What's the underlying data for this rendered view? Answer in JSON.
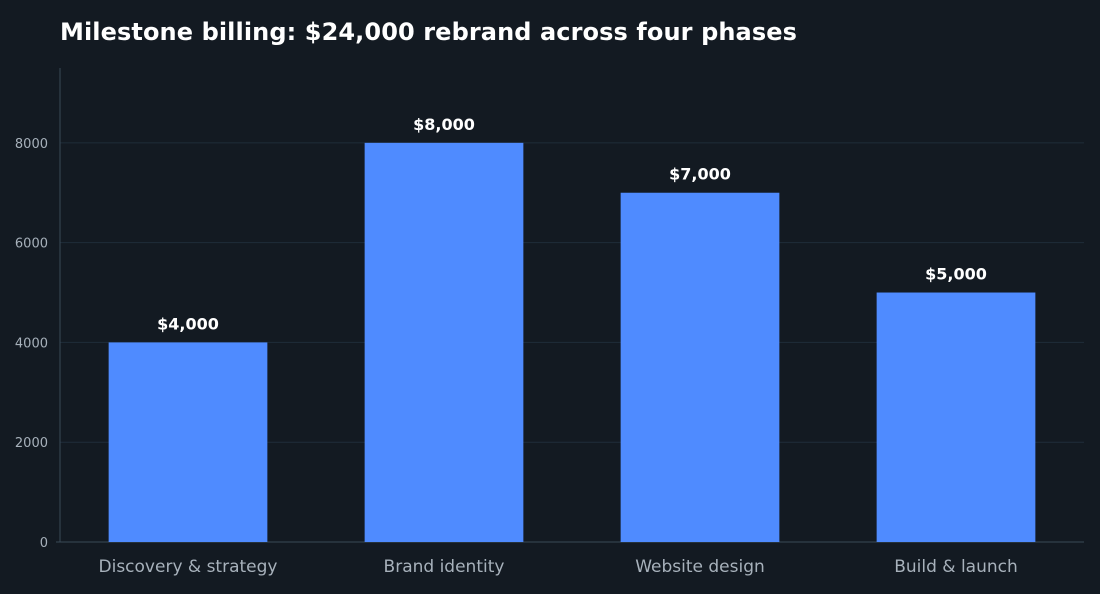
{
  "chart_data": {
    "type": "bar",
    "title": "Milestone billing: $24,000 rebrand across four phases",
    "categories": [
      "Discovery & strategy",
      "Brand identity",
      "Website design",
      "Build & launch"
    ],
    "values": [
      4000,
      8000,
      7000,
      5000
    ],
    "data_labels": [
      "$4,000",
      "$8,000",
      "$7,000",
      "$5,000"
    ],
    "yticks": [
      0,
      2000,
      4000,
      6000,
      8000
    ],
    "ylim": [
      0,
      9500
    ],
    "xlabel": "",
    "ylabel": "",
    "grid": true,
    "legend": "none",
    "colors": {
      "bar": "#4f8bff",
      "background": "#131a22",
      "grid": "#1f2d3a",
      "text": "#ffffff",
      "tick": "#a7b1bb"
    }
  }
}
